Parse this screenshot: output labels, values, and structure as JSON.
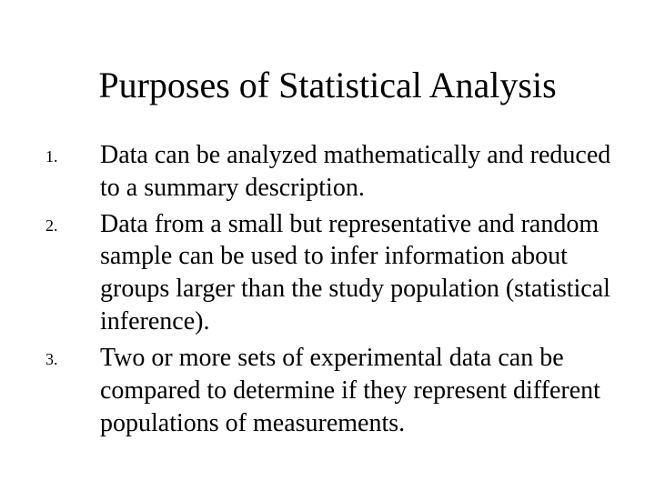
{
  "title": {
    "text": "Purposes of Statistical Analysis",
    "fontsize": 40,
    "color": "#000000"
  },
  "list": {
    "body_fontsize": 28,
    "marker_fontsize": 18,
    "color": "#000000",
    "items": [
      {
        "marker": "1.",
        "text": "Data can be analyzed mathematically and reduced to a summary description."
      },
      {
        "marker": "2.",
        "text": "Data from a small but representative and random sample can be used to infer information about groups larger than the study population (statistical inference)."
      },
      {
        "marker": "3.",
        "text": "Two or more sets of experimental data can be compared to determine if they represent different populations of measurements."
      }
    ]
  },
  "background_color": "#ffffff"
}
